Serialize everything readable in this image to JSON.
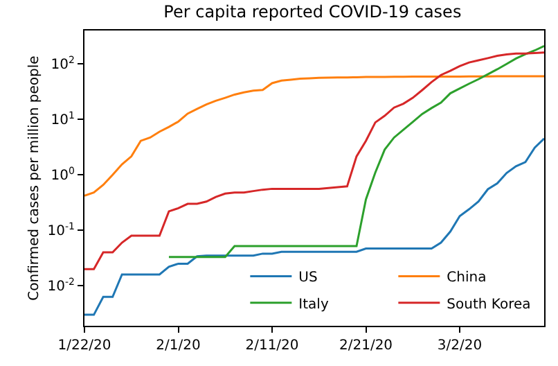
{
  "chart_data": {
    "type": "line",
    "title": "Per capita reported COVID-19 cases",
    "ylabel": "Confirmed cases per million people",
    "x": [
      "2020-01-22",
      "2020-01-23",
      "2020-01-24",
      "2020-01-25",
      "2020-01-26",
      "2020-01-27",
      "2020-01-28",
      "2020-01-29",
      "2020-01-30",
      "2020-01-31",
      "2020-02-01",
      "2020-02-02",
      "2020-02-03",
      "2020-02-04",
      "2020-02-05",
      "2020-02-06",
      "2020-02-07",
      "2020-02-08",
      "2020-02-09",
      "2020-02-10",
      "2020-02-11",
      "2020-02-12",
      "2020-02-13",
      "2020-02-14",
      "2020-02-15",
      "2020-02-16",
      "2020-02-17",
      "2020-02-18",
      "2020-02-19",
      "2020-02-20",
      "2020-02-21",
      "2020-02-22",
      "2020-02-23",
      "2020-02-24",
      "2020-02-25",
      "2020-02-26",
      "2020-02-27",
      "2020-02-28",
      "2020-02-29",
      "2020-03-01",
      "2020-03-02",
      "2020-03-03",
      "2020-03-04",
      "2020-03-05",
      "2020-03-06",
      "2020-03-07",
      "2020-03-08",
      "2020-03-09",
      "2020-03-10",
      "2020-03-11"
    ],
    "series": [
      {
        "name": "US",
        "color": "#1f77b4",
        "values": [
          0.003,
          0.003,
          0.0063,
          0.0063,
          0.016,
          0.016,
          0.016,
          0.016,
          0.016,
          0.022,
          0.025,
          0.025,
          0.034,
          0.035,
          0.035,
          0.035,
          0.035,
          0.035,
          0.035,
          0.038,
          0.038,
          0.041,
          0.041,
          0.041,
          0.041,
          0.041,
          0.041,
          0.041,
          0.041,
          0.041,
          0.047,
          0.047,
          0.047,
          0.047,
          0.047,
          0.047,
          0.047,
          0.047,
          0.06,
          0.095,
          0.18,
          0.24,
          0.33,
          0.55,
          0.7,
          1.08,
          1.43,
          1.7,
          3.1,
          4.5
        ]
      },
      {
        "name": "China",
        "color": "#ff7f0e",
        "values": [
          0.42,
          0.48,
          0.66,
          1.0,
          1.55,
          2.15,
          4.1,
          4.7,
          6.0,
          7.3,
          9.1,
          12.7,
          15.4,
          18.6,
          21.6,
          24.5,
          28,
          30.7,
          33,
          34,
          45,
          50,
          52,
          54,
          55,
          56,
          56.5,
          57,
          57,
          57.5,
          58,
          58,
          58,
          58.5,
          58.5,
          59,
          59,
          59,
          59,
          59,
          59,
          59.5,
          59.5,
          59.5,
          60,
          60,
          60,
          60,
          60,
          60
        ]
      },
      {
        "name": "Italy",
        "color": "#2ca02c",
        "values": [
          null,
          null,
          null,
          null,
          null,
          null,
          null,
          null,
          null,
          0.033,
          0.033,
          0.033,
          0.033,
          0.033,
          0.033,
          0.033,
          0.052,
          0.052,
          0.052,
          0.052,
          0.052,
          0.052,
          0.052,
          0.052,
          0.052,
          0.052,
          0.052,
          0.052,
          0.052,
          0.052,
          0.36,
          1.1,
          2.85,
          4.7,
          6.5,
          9,
          12.5,
          16,
          20,
          29.5,
          36,
          44,
          53,
          65,
          80,
          100,
          125,
          150,
          175,
          210
        ]
      },
      {
        "name": "South Korea",
        "color": "#d62728",
        "values": [
          0.02,
          0.02,
          0.04,
          0.04,
          0.06,
          0.08,
          0.08,
          0.08,
          0.08,
          0.22,
          0.25,
          0.3,
          0.3,
          0.33,
          0.4,
          0.46,
          0.48,
          0.48,
          0.51,
          0.54,
          0.56,
          0.56,
          0.56,
          0.56,
          0.56,
          0.56,
          0.58,
          0.6,
          0.62,
          2.15,
          4.1,
          8.8,
          11.6,
          16.3,
          19.2,
          24.5,
          33.7,
          47,
          63,
          75,
          91,
          106,
          116,
          127,
          140,
          148,
          154,
          154,
          157,
          160
        ]
      }
    ],
    "xlim": [
      "2020-01-22",
      "2020-03-11"
    ],
    "xticks": [
      {
        "value": "2020-01-22",
        "label": "1/22/20"
      },
      {
        "value": "2020-02-01",
        "label": "2/1/20"
      },
      {
        "value": "2020-02-11",
        "label": "2/11/20"
      },
      {
        "value": "2020-02-21",
        "label": "2/21/20"
      },
      {
        "value": "2020-03-02",
        "label": "3/2/20"
      }
    ],
    "ylim": [
      0.0019,
      400
    ],
    "log": "y",
    "yticks": [
      {
        "value": 0.01,
        "label": "10$^{-2}$"
      },
      {
        "value": 0.1,
        "label": "10$^{-1}$"
      },
      {
        "value": 1,
        "label": "10$^{0}$"
      },
      {
        "value": 10,
        "label": "10$^{1}$"
      },
      {
        "value": 100,
        "label": "10$^{2}$"
      }
    ],
    "legend": "bottom right",
    "grid": false,
    "marker": "none",
    "line_style": "solid"
  }
}
